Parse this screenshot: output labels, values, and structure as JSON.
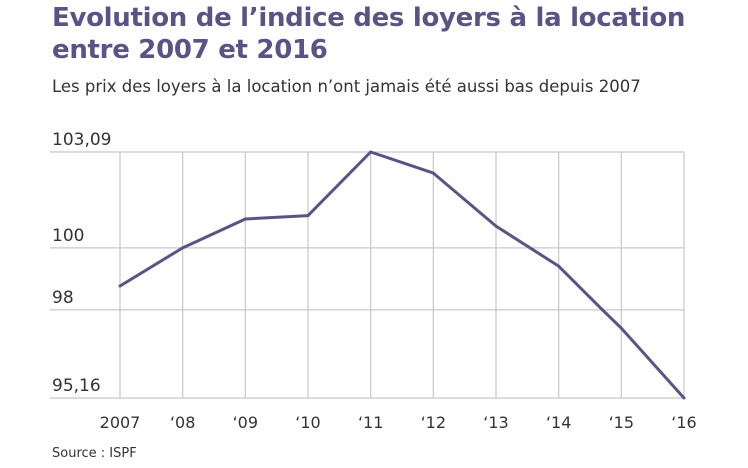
{
  "chart_data": {
    "type": "line",
    "title": "Evolution de l’indice des loyers à la location entre 2007 et 2016",
    "subtitle": "Les prix des loyers à la location n’ont jamais été aussi bas depuis 2007",
    "source": "Source : ISPF",
    "categories": [
      "2007",
      "‘08",
      "‘09",
      "‘10",
      "‘11",
      "‘12",
      "‘13",
      "‘14",
      "‘15",
      "‘16"
    ],
    "x": [
      2007,
      2008,
      2009,
      2010,
      2011,
      2012,
      2013,
      2014,
      2014.7,
      2015,
      2016
    ],
    "y": [
      98.77,
      100.0,
      100.93,
      101.04,
      103.09,
      102.41,
      100.7,
      99.41,
      98.0,
      97.41,
      95.16
    ],
    "yticks": [
      "103,09",
      "100",
      "98",
      "95,16"
    ],
    "ytick_values": [
      103.09,
      100,
      98,
      95.16
    ],
    "ylim": [
      95.16,
      103.09
    ],
    "xlim": [
      2007,
      2016
    ],
    "grid": true,
    "line_color": "#5b5285",
    "grid_color": "#c8c8c8"
  }
}
